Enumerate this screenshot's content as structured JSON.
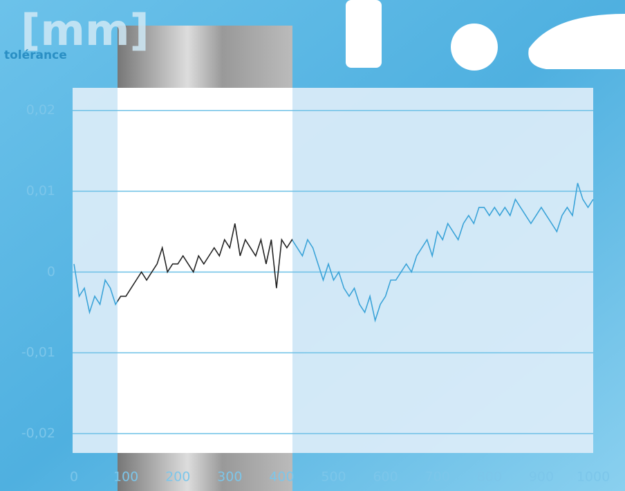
{
  "chart_data": {
    "type": "line",
    "title": "[mm]",
    "y_label": "tolérance",
    "x": [
      0,
      10,
      20,
      30,
      40,
      50,
      60,
      70,
      80,
      90,
      100,
      110,
      120,
      130,
      140,
      150,
      160,
      170,
      180,
      190,
      200,
      210,
      220,
      230,
      240,
      250,
      260,
      270,
      280,
      290,
      300,
      310,
      320,
      330,
      340,
      350,
      360,
      370,
      380,
      390,
      400,
      410,
      420,
      430,
      440,
      450,
      460,
      470,
      480,
      490,
      500,
      510,
      520,
      530,
      540,
      550,
      560,
      570,
      580,
      590,
      600,
      610,
      620,
      630,
      640,
      650,
      660,
      670,
      680,
      690,
      700,
      710,
      720,
      730,
      740,
      750,
      760,
      770,
      780,
      790,
      800,
      810,
      820,
      830,
      840,
      850,
      860,
      870,
      880,
      890,
      900,
      910,
      920,
      930,
      940,
      950,
      960,
      970,
      980,
      990,
      1000
    ],
    "values": [
      0.001,
      -0.003,
      -0.002,
      -0.005,
      -0.003,
      -0.004,
      -0.001,
      -0.002,
      -0.004,
      -0.003,
      -0.003,
      -0.002,
      -0.001,
      0,
      -0.001,
      0,
      0.001,
      0.003,
      0,
      0.001,
      0.001,
      0.002,
      0.001,
      0,
      0.002,
      0.001,
      0.002,
      0.003,
      0.002,
      0.004,
      0.003,
      0.006,
      0.002,
      0.004,
      0.003,
      0.002,
      0.004,
      0.001,
      0.004,
      -0.002,
      0.004,
      0.003,
      0.004,
      0.003,
      0.002,
      0.004,
      0.003,
      0.001,
      -0.001,
      0.001,
      -0.001,
      0,
      -0.002,
      -0.003,
      -0.002,
      -0.004,
      -0.005,
      -0.003,
      -0.006,
      -0.004,
      -0.003,
      -0.001,
      -0.001,
      0,
      0.001,
      0,
      0.002,
      0.003,
      0.004,
      0.002,
      0.005,
      0.004,
      0.006,
      0.005,
      0.004,
      0.006,
      0.007,
      0.006,
      0.008,
      0.008,
      0.007,
      0.008,
      0.007,
      0.008,
      0.007,
      0.009,
      0.008,
      0.007,
      0.006,
      0.007,
      0.008,
      0.007,
      0.006,
      0.005,
      0.007,
      0.008,
      0.007,
      0.011,
      0.009,
      0.008,
      0.009
    ],
    "color": "#3aa3d8",
    "xlim": [
      0,
      1000
    ],
    "xticks": [
      0,
      100,
      200,
      300,
      400,
      500,
      600,
      700,
      800,
      900,
      1000
    ],
    "ylim": [
      -0.0224,
      0.0228
    ],
    "yticks": [
      {
        "value": 0.02,
        "label": "0,02"
      },
      {
        "value": 0.01,
        "label": "0,01"
      },
      0,
      {
        "value": -0.01,
        "label": "-0,01"
      },
      {
        "value": -0.02,
        "label": "-0,02"
      }
    ],
    "grid": true
  }
}
